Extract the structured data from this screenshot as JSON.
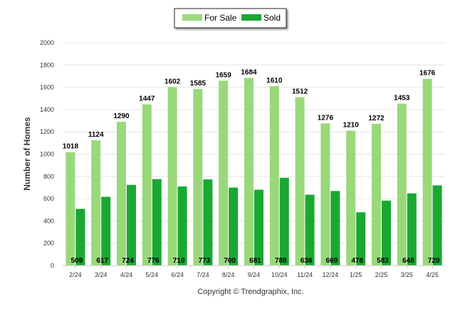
{
  "chart_data": {
    "type": "bar",
    "categories": [
      "2/24",
      "3/24",
      "4/24",
      "5/24",
      "6/24",
      "7/24",
      "8/24",
      "9/24",
      "10/24",
      "11/24",
      "12/24",
      "1/25",
      "2/25",
      "3/25",
      "4/25"
    ],
    "series": [
      {
        "name": "For Sale",
        "color": "#99d97a",
        "values": [
          1018,
          1124,
          1290,
          1447,
          1602,
          1585,
          1659,
          1684,
          1610,
          1512,
          1276,
          1210,
          1272,
          1453,
          1676
        ]
      },
      {
        "name": "Sold",
        "color": "#1aa832",
        "values": [
          509,
          617,
          724,
          776,
          710,
          773,
          700,
          681,
          788,
          636,
          669,
          478,
          583,
          648,
          720
        ]
      }
    ],
    "ylabel": "Number of Homes",
    "xlabel": "",
    "ylim": [
      0,
      2000
    ],
    "yticks": [
      0,
      200,
      400,
      600,
      800,
      1000,
      1200,
      1400,
      1600,
      1800,
      2000
    ],
    "legend_position": "top-center",
    "grid": true,
    "copyright": "Copyright © Trendgraphix, Inc."
  }
}
